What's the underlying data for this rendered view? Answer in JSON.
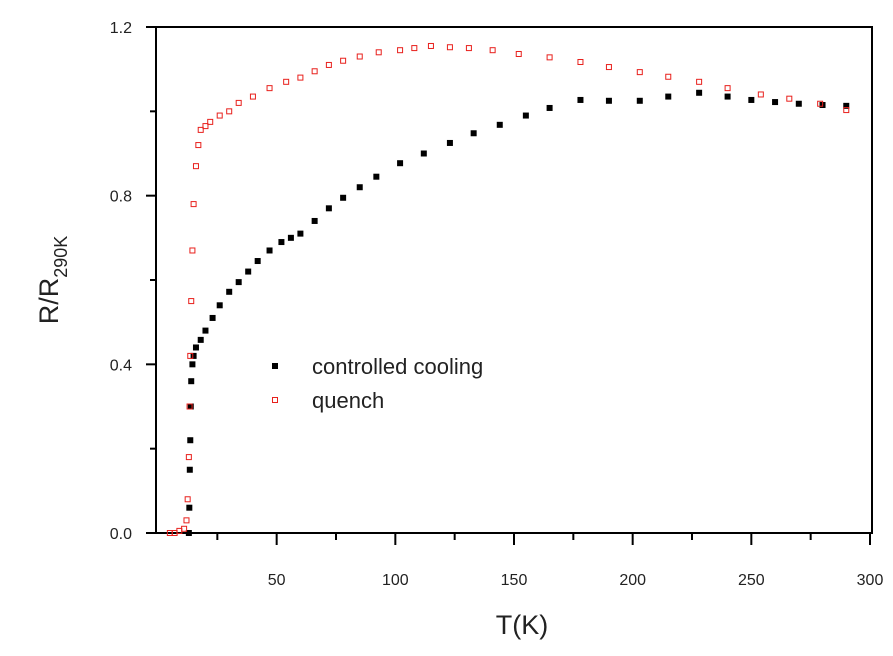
{
  "chart_data": {
    "type": "scatter",
    "x_label": "T(K)",
    "y_label": "R/R",
    "y_label_sub": "290K",
    "xlim": [
      0,
      300
    ],
    "ylim": [
      0,
      1.2
    ],
    "xticks": [
      50,
      100,
      150,
      200,
      250,
      300
    ],
    "xminorticks": [
      25,
      75,
      125,
      175,
      225,
      275
    ],
    "yticks": [
      {
        "value": 0,
        "label": "0.0"
      },
      {
        "value": 0.4,
        "label": "0.4"
      },
      {
        "value": 0.8,
        "label": "0.8"
      },
      {
        "value": 1.2,
        "label": "1.2"
      }
    ],
    "yminorticks": [
      0.2,
      0.6,
      1.0
    ],
    "legend": "center-left",
    "series": [
      {
        "name": "controlled cooling",
        "color": "#000000",
        "marker": "filled-square",
        "x": [
          13,
          13.2,
          13.4,
          13.6,
          13.8,
          14,
          14.5,
          15,
          16,
          18,
          20,
          23,
          26,
          30,
          34,
          38,
          42,
          47,
          52,
          56,
          60,
          66,
          72,
          78,
          85,
          92,
          102,
          112,
          123,
          133,
          144,
          155,
          165,
          178,
          190,
          203,
          215,
          228,
          240,
          250,
          260,
          270,
          280,
          290
        ],
        "y": [
          0.0,
          0.06,
          0.15,
          0.22,
          0.3,
          0.36,
          0.4,
          0.42,
          0.44,
          0.458,
          0.48,
          0.51,
          0.54,
          0.572,
          0.595,
          0.62,
          0.645,
          0.67,
          0.69,
          0.7,
          0.71,
          0.74,
          0.77,
          0.795,
          0.82,
          0.845,
          0.877,
          0.9,
          0.925,
          0.948,
          0.968,
          0.99,
          1.008,
          1.027,
          1.025,
          1.025,
          1.035,
          1.044,
          1.035,
          1.027,
          1.022,
          1.018,
          1.015,
          1.013
        ]
      },
      {
        "name": "quench",
        "color": "#e8201c",
        "marker": "open-square",
        "x": [
          5,
          7,
          9,
          11,
          12,
          12.5,
          13,
          13.3,
          13.6,
          14,
          14.5,
          15,
          16,
          17,
          18,
          20,
          22,
          26,
          30,
          34,
          40,
          47,
          54,
          60,
          66,
          72,
          78,
          85,
          93,
          102,
          108,
          115,
          123,
          131,
          141,
          152,
          165,
          178,
          190,
          203,
          215,
          228,
          240,
          254,
          266,
          279,
          290
        ],
        "y": [
          0.0,
          0.0,
          0.005,
          0.01,
          0.03,
          0.08,
          0.18,
          0.3,
          0.42,
          0.55,
          0.67,
          0.78,
          0.87,
          0.92,
          0.956,
          0.965,
          0.975,
          0.99,
          1.0,
          1.02,
          1.035,
          1.055,
          1.07,
          1.08,
          1.095,
          1.11,
          1.12,
          1.13,
          1.14,
          1.145,
          1.15,
          1.155,
          1.152,
          1.15,
          1.145,
          1.136,
          1.128,
          1.117,
          1.105,
          1.093,
          1.082,
          1.07,
          1.055,
          1.04,
          1.03,
          1.018,
          1.003
        ]
      }
    ]
  }
}
